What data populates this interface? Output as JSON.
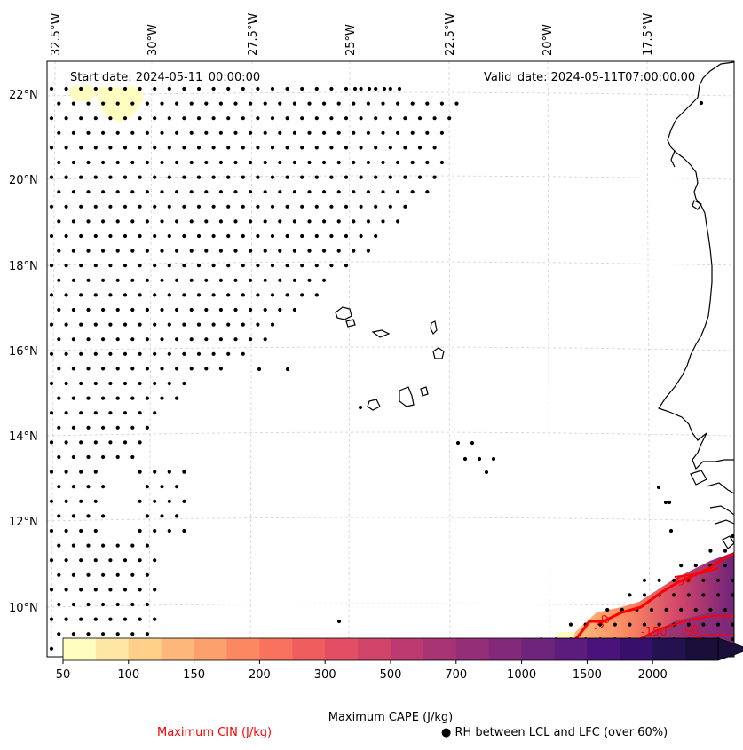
{
  "title_left": "Start date: 2024-05-11_00:00:00",
  "title_right": "Valid_date: 2024-05-11T07:00:00.00",
  "lon_labels": [
    "32.5°W",
    "30°W",
    "27.5°W",
    "25°W",
    "22.5°W",
    "20°W",
    "17.5°W"
  ],
  "lat_labels": [
    "22°N",
    "20°N",
    "18°N",
    "16°N",
    "14°N",
    "12°N",
    "10°N"
  ],
  "colorbar": {
    "title": "Maximum CAPE (J/kg)",
    "tick_labels": [
      "50",
      "100",
      "150",
      "200",
      "300",
      "500",
      "700",
      "1000",
      "1500",
      "2000"
    ],
    "colors": [
      "#fffdbf",
      "#fee6a3",
      "#fed088",
      "#fdb77b",
      "#fca06d",
      "#fb8861",
      "#f8725d",
      "#ef5e5e",
      "#e24f64",
      "#d0446a",
      "#bc3a6f",
      "#a83474",
      "#942e77",
      "#822a79",
      "#6f247b",
      "#5c1c7b",
      "#4a137a",
      "#36106b",
      "#231150",
      "#1a0f3a"
    ]
  },
  "legend": {
    "cin_label": "Maximum CIN (J/kg)",
    "rh_label": "● RH between LCL and LFC (over 60%)"
  },
  "contour_labels": [
    "-50",
    "-50",
    "-150",
    "-50"
  ],
  "colors": {
    "cin": "#ff0000",
    "coast": "#000000",
    "grid": "#cccccc"
  }
}
